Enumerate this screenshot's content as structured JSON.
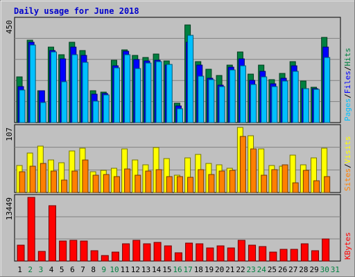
{
  "colors": {
    "panel_bg": "#c0c0c0",
    "outer_bg": "#ffffff",
    "pages": "#00c0ff",
    "files": "#0000ff",
    "hits": "#008040",
    "visits": "#ffff00",
    "sites": "#ff8000",
    "kbytes": "#ff0000",
    "title": "#0000cc",
    "weekend": "#008040",
    "weekday": "#000000"
  },
  "chart_data": {
    "type": "bar",
    "title": "Daily usage for June 2018",
    "days": [
      "1",
      "2",
      "3",
      "4",
      "5",
      "6",
      "7",
      "8",
      "9",
      "10",
      "11",
      "12",
      "13",
      "14",
      "15",
      "16",
      "17",
      "18",
      "19",
      "20",
      "21",
      "22",
      "23",
      "24",
      "25",
      "26",
      "27",
      "28",
      "29",
      "30",
      "31"
    ],
    "weekend_days": [
      "2",
      "3",
      "9",
      "10",
      "16",
      "17",
      "23",
      "24",
      "30",
      "31"
    ],
    "panels": [
      {
        "ylabel_parts": [
          "Pages",
          "/",
          "Files",
          "/",
          "Hits"
        ],
        "ymax_label": "450",
        "ymax": 450,
        "series": [
          {
            "name": "Hits",
            "values": [
              202,
              361,
              140,
              330,
              297,
              353,
              317,
              140,
              133,
              273,
              319,
              296,
              286,
              301,
              270,
              84,
              429,
              269,
              233,
              206,
              252,
              310,
              212,
              251,
              188,
              215,
              268,
              182,
              155,
              374
            ]
          },
          {
            "name": "Files",
            "values": [
              159,
              352,
              140,
              315,
              279,
              330,
              295,
              124,
              128,
              248,
              313,
              278,
              271,
              273,
              253,
              72,
              352,
              251,
              196,
              165,
              244,
              280,
              185,
              226,
              169,
              196,
              249,
              149,
              148,
              331
            ]
          },
          {
            "name": "Pages",
            "values": [
              144,
              341,
              89,
              309,
              179,
              297,
              265,
              95,
              123,
              240,
              298,
              238,
              260,
              269,
              254,
              61,
              384,
              203,
              187,
              157,
              232,
              250,
              166,
              202,
              159,
              182,
              225,
              150,
              147,
              287
            ]
          }
        ]
      },
      {
        "ylabel_parts": [
          "Sites",
          "/",
          "Visits"
        ],
        "ymax_label": "107",
        "ymax": 107,
        "series": [
          {
            "name": "Visits",
            "values": [
              44,
              65,
              76,
              53,
              49,
              68,
              73,
              34,
              36,
              40,
              72,
              54,
              46,
              74,
              56,
              29,
              57,
              63,
              48,
              46,
              40,
              107,
              93,
              72,
              44,
              43,
              61,
              46,
              57,
              73
            ]
          },
          {
            "name": "Sites",
            "values": [
              34,
              43,
              48,
              35,
              20,
              35,
              53,
              28,
              30,
              26,
              39,
              28,
              35,
              37,
              26,
              26,
              25,
              38,
              30,
              35,
              36,
              92,
              72,
              28,
              37,
              45,
              16,
              36,
              19,
              26
            ]
          }
        ]
      },
      {
        "ylabel_parts": [
          "KBytes"
        ],
        "ymax_label": "13449",
        "ymax": 13449,
        "series": [
          {
            "name": "KBytes",
            "values": [
              3360,
              13449,
              2013,
              11714,
              4240,
              4370,
              4241,
              2209,
              1217,
              1941,
              3705,
              4320,
              3715,
              3998,
              3276,
              1797,
              3811,
              3681,
              2817,
              3185,
              2784,
              4401,
              3378,
              2997,
              1858,
              2453,
              2454,
              3602,
              2211,
              4729
            ]
          }
        ]
      }
    ]
  }
}
